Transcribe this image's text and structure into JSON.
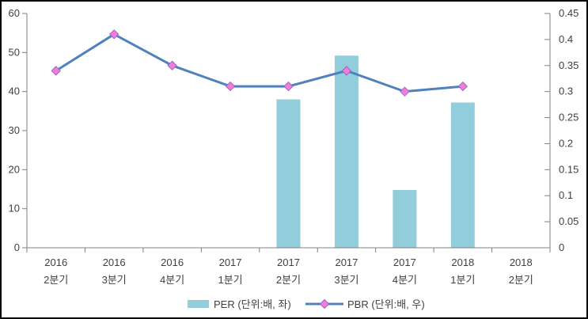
{
  "chart_data": {
    "type": "combo",
    "title": "",
    "categories": [
      [
        "2016",
        "2분기"
      ],
      [
        "2016",
        "3분기"
      ],
      [
        "2016",
        "4분기"
      ],
      [
        "2017",
        "1분기"
      ],
      [
        "2017",
        "2분기"
      ],
      [
        "2017",
        "3분기"
      ],
      [
        "2017",
        "4분기"
      ],
      [
        "2018",
        "1분기"
      ],
      [
        "2018",
        "2분기"
      ]
    ],
    "series": [
      {
        "name": "PER (단위:배, 좌)",
        "type": "bar",
        "axis": "left",
        "values": [
          null,
          null,
          null,
          null,
          38.0,
          49.2,
          14.8,
          37.2,
          null
        ]
      },
      {
        "name": "PBR (단위:배, 우)",
        "type": "line",
        "axis": "right",
        "values": [
          0.34,
          0.41,
          0.35,
          0.31,
          0.31,
          0.34,
          0.3,
          0.31,
          null
        ]
      }
    ],
    "left_axis": {
      "min": 0,
      "max": 60,
      "step": 10,
      "tick_labels": [
        "0",
        "10",
        "20",
        "30",
        "40",
        "50",
        "60"
      ]
    },
    "right_axis": {
      "min": 0,
      "max": 0.45,
      "step": 0.05,
      "tick_labels": [
        "0",
        "0.05",
        "0.1",
        "0.15",
        "0.2",
        "0.25",
        "0.3",
        "0.35",
        "0.4",
        "0.45"
      ]
    },
    "legend": {
      "position": "bottom-center",
      "entries": [
        {
          "label": "PER (단위:배, 좌)",
          "marker": "bar-swatch"
        },
        {
          "label": "PBR (단위:배, 우)",
          "marker": "line-diamond"
        }
      ]
    },
    "grid": "off",
    "colors": {
      "bar": "#92CDDC",
      "line": "#4F81BD",
      "marker_fill": "#F07ED8",
      "marker_stroke": "#9E64C8",
      "axis": "#808080",
      "text": "#3F3F3F",
      "background": "#FFFFFF",
      "border": "#000000"
    }
  }
}
